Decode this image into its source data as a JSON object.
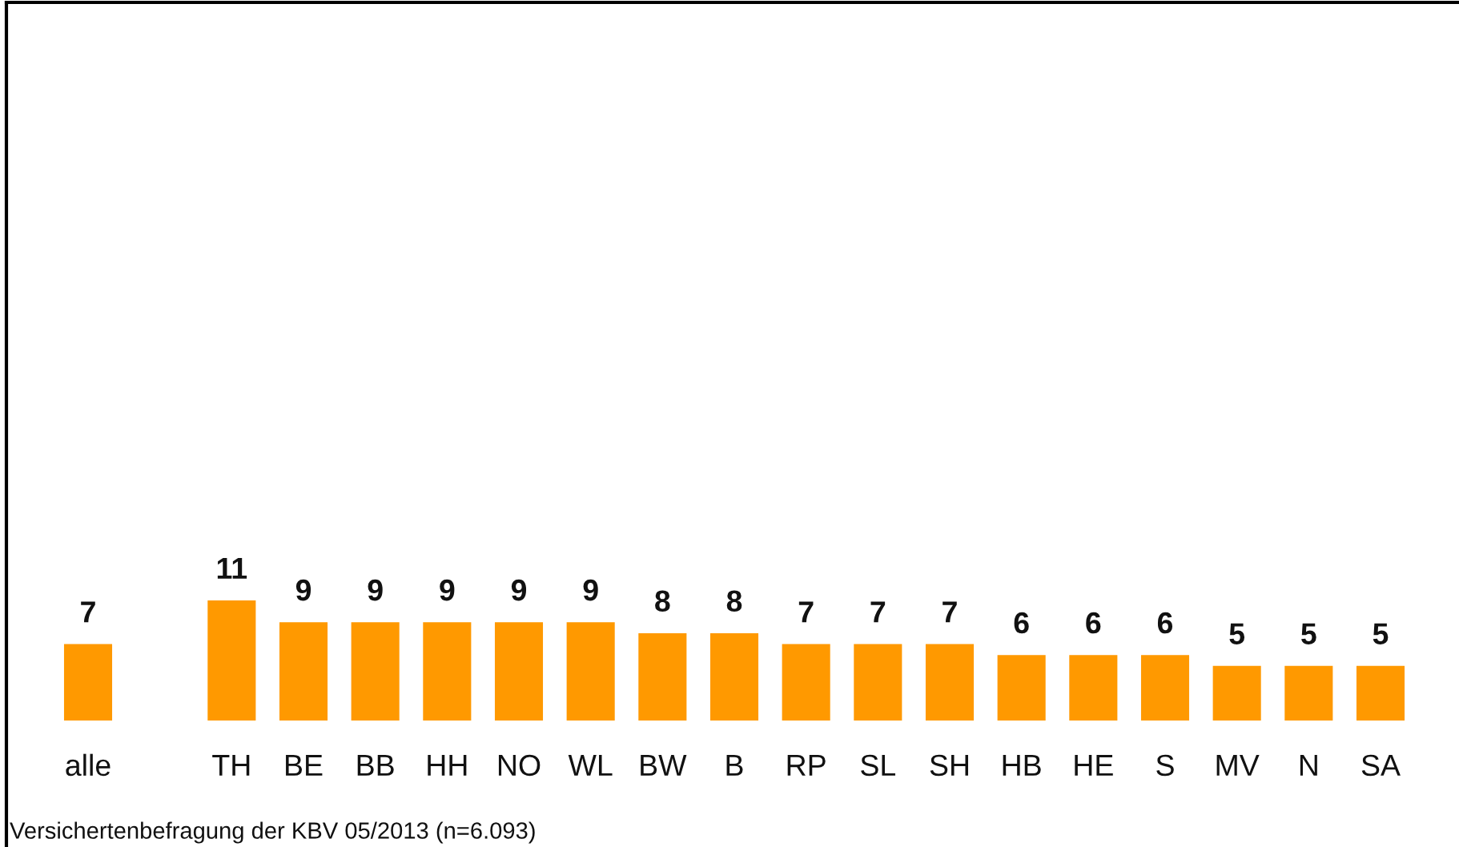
{
  "chart_data": {
    "type": "bar",
    "categories": [
      "alle",
      null,
      "TH",
      "BE",
      "BB",
      "HH",
      "NO",
      "WL",
      "BW",
      "B",
      "RP",
      "SL",
      "SH",
      "HB",
      "HE",
      "S",
      "MV",
      "N",
      "SA"
    ],
    "values": [
      7,
      null,
      11,
      9,
      9,
      9,
      9,
      9,
      8,
      8,
      7,
      7,
      7,
      6,
      6,
      6,
      5,
      5,
      5
    ],
    "color": "#ff9900",
    "data_labels": true,
    "annotations": [
      "Versichertenbefragung der KBV 05/2013 (n=6.093)"
    ]
  }
}
